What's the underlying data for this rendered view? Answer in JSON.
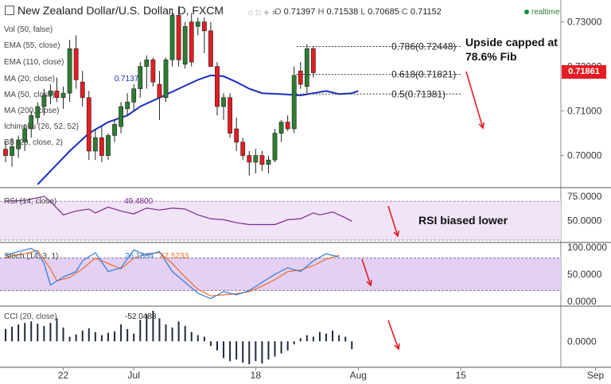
{
  "header": {
    "title": "New Zealand Dollar/U.S. Dollar, D, FXCM",
    "ohlc": {
      "O": "0.71397",
      "H": "0.71538",
      "L": "0.70685",
      "C": "0.71152"
    },
    "realtime_label": "realtime"
  },
  "overlay_labels": {
    "vol": "Vol (50, false)",
    "ema55": "EMA (55, close)",
    "ema110": "EMA (110, close)",
    "ma20": "MA (20, close)",
    "ma20_value": "0.7137",
    "ma50": "MA (50, close)",
    "ma200": "MA (200, close)",
    "ichimoku": "Ichimoku (26, 52, 52)",
    "bb": "BB (20, close, 2)"
  },
  "price_tag": "0.71861",
  "annotations": {
    "upside": "Upside capped at 78.6% Fib",
    "rsi": "RSI biased lower"
  },
  "colors": {
    "bull": "#2e7d32",
    "bear": "#e51c23",
    "ma": "#1a2fbf",
    "rsi_line": "#7b2a8f",
    "rsi_band": "#f1e4f7",
    "stoch_k": "#2f7bd8",
    "stoch_d": "#ef6c2a",
    "stoch_band": "#e3d0f2",
    "cci_bar": "#1f2a3d",
    "arrow": "#e51c23"
  },
  "chart_data": [
    {
      "type": "candlestick",
      "title": "New Zealand Dollar/U.S. Dollar, D, FXCM",
      "y_ticks": [
        "0.73000",
        "0.72000",
        "0.71000",
        "0.70000"
      ],
      "ylim": [
        0.6935,
        0.7335
      ],
      "x_ticks": [
        {
          "label": "22",
          "index": 9
        },
        {
          "label": "Jul",
          "index": 20
        },
        {
          "label": "18",
          "index": 39
        },
        {
          "label": "Aug",
          "index": 55
        },
        {
          "label": "15",
          "index": 71
        },
        {
          "label": "Sep",
          "index": 92
        }
      ],
      "candles": [
        {
          "o": 0.7014,
          "h": 0.703,
          "l": 0.6985,
          "c": 0.7
        },
        {
          "o": 0.7,
          "h": 0.704,
          "l": 0.6975,
          "c": 0.702
        },
        {
          "o": 0.7015,
          "h": 0.7045,
          "l": 0.6995,
          "c": 0.7035
        },
        {
          "o": 0.703,
          "h": 0.707,
          "l": 0.701,
          "c": 0.706
        },
        {
          "o": 0.706,
          "h": 0.71,
          "l": 0.704,
          "c": 0.709
        },
        {
          "o": 0.7085,
          "h": 0.712,
          "l": 0.707,
          "c": 0.711
        },
        {
          "o": 0.711,
          "h": 0.715,
          "l": 0.709,
          "c": 0.7135
        },
        {
          "o": 0.7135,
          "h": 0.716,
          "l": 0.7115,
          "c": 0.7145
        },
        {
          "o": 0.7145,
          "h": 0.7175,
          "l": 0.712,
          "c": 0.713
        },
        {
          "o": 0.713,
          "h": 0.7155,
          "l": 0.7105,
          "c": 0.714
        },
        {
          "o": 0.714,
          "h": 0.726,
          "l": 0.712,
          "c": 0.724
        },
        {
          "o": 0.724,
          "h": 0.727,
          "l": 0.715,
          "c": 0.717
        },
        {
          "o": 0.7165,
          "h": 0.719,
          "l": 0.711,
          "c": 0.713
        },
        {
          "o": 0.713,
          "h": 0.7145,
          "l": 0.699,
          "c": 0.701
        },
        {
          "o": 0.701,
          "h": 0.706,
          "l": 0.699,
          "c": 0.704
        },
        {
          "o": 0.704,
          "h": 0.7065,
          "l": 0.6985,
          "c": 0.7
        },
        {
          "o": 0.7,
          "h": 0.705,
          "l": 0.699,
          "c": 0.7045
        },
        {
          "o": 0.7045,
          "h": 0.708,
          "l": 0.703,
          "c": 0.707
        },
        {
          "o": 0.7065,
          "h": 0.712,
          "l": 0.705,
          "c": 0.711
        },
        {
          "o": 0.7105,
          "h": 0.714,
          "l": 0.709,
          "c": 0.712
        },
        {
          "o": 0.712,
          "h": 0.716,
          "l": 0.71,
          "c": 0.715
        },
        {
          "o": 0.715,
          "h": 0.721,
          "l": 0.713,
          "c": 0.72
        },
        {
          "o": 0.72,
          "h": 0.7225,
          "l": 0.715,
          "c": 0.7215
        },
        {
          "o": 0.7215,
          "h": 0.722,
          "l": 0.7155,
          "c": 0.7165
        },
        {
          "o": 0.716,
          "h": 0.719,
          "l": 0.708,
          "c": 0.713
        },
        {
          "o": 0.713,
          "h": 0.722,
          "l": 0.712,
          "c": 0.7215
        },
        {
          "o": 0.7215,
          "h": 0.733,
          "l": 0.72,
          "c": 0.7315
        },
        {
          "o": 0.7315,
          "h": 0.7335,
          "l": 0.72,
          "c": 0.7215
        },
        {
          "o": 0.7205,
          "h": 0.73,
          "l": 0.7195,
          "c": 0.729
        },
        {
          "o": 0.73,
          "h": 0.732,
          "l": 0.72,
          "c": 0.721
        },
        {
          "o": 0.729,
          "h": 0.731,
          "l": 0.727,
          "c": 0.73
        },
        {
          "o": 0.73,
          "h": 0.731,
          "l": 0.723,
          "c": 0.728
        },
        {
          "o": 0.728,
          "h": 0.73,
          "l": 0.72,
          "c": 0.72
        },
        {
          "o": 0.72,
          "h": 0.721,
          "l": 0.709,
          "c": 0.711
        },
        {
          "o": 0.711,
          "h": 0.714,
          "l": 0.708,
          "c": 0.713
        },
        {
          "o": 0.713,
          "h": 0.714,
          "l": 0.704,
          "c": 0.705
        },
        {
          "o": 0.706,
          "h": 0.7085,
          "l": 0.701,
          "c": 0.703
        },
        {
          "o": 0.703,
          "h": 0.704,
          "l": 0.699,
          "c": 0.7
        },
        {
          "o": 0.7,
          "h": 0.701,
          "l": 0.6955,
          "c": 0.6985
        },
        {
          "o": 0.6985,
          "h": 0.7015,
          "l": 0.696,
          "c": 0.7
        },
        {
          "o": 0.7,
          "h": 0.701,
          "l": 0.6965,
          "c": 0.698
        },
        {
          "o": 0.698,
          "h": 0.7,
          "l": 0.696,
          "c": 0.699
        },
        {
          "o": 0.699,
          "h": 0.706,
          "l": 0.6985,
          "c": 0.705
        },
        {
          "o": 0.705,
          "h": 0.708,
          "l": 0.703,
          "c": 0.7075
        },
        {
          "o": 0.7075,
          "h": 0.709,
          "l": 0.7055,
          "c": 0.706
        },
        {
          "o": 0.706,
          "h": 0.72,
          "l": 0.705,
          "c": 0.718
        },
        {
          "o": 0.719,
          "h": 0.721,
          "l": 0.715,
          "c": 0.716
        },
        {
          "o": 0.7155,
          "h": 0.725,
          "l": 0.714,
          "c": 0.724
        },
        {
          "o": 0.724,
          "h": 0.7245,
          "l": 0.7175,
          "c": 0.7186
        }
      ],
      "fib_levels": [
        {
          "label": "0.786(0.72448)",
          "value": 0.72448
        },
        {
          "label": "0.618(0.71821)",
          "value": 0.71821
        },
        {
          "label": "0.5(0.71381)",
          "value": 0.71381
        }
      ],
      "ma20": [
        {
          "i": 5,
          "v": 0.6935
        },
        {
          "i": 8,
          "v": 0.698
        },
        {
          "i": 10,
          "v": 0.701
        },
        {
          "i": 13,
          "v": 0.705
        },
        {
          "i": 16,
          "v": 0.7075
        },
        {
          "i": 19,
          "v": 0.709
        },
        {
          "i": 21,
          "v": 0.711
        },
        {
          "i": 24,
          "v": 0.713
        },
        {
          "i": 27,
          "v": 0.715
        },
        {
          "i": 30,
          "v": 0.717
        },
        {
          "i": 32,
          "v": 0.718
        },
        {
          "i": 34,
          "v": 0.7178
        },
        {
          "i": 36,
          "v": 0.7165
        },
        {
          "i": 38,
          "v": 0.715
        },
        {
          "i": 40,
          "v": 0.714
        },
        {
          "i": 43,
          "v": 0.7138
        },
        {
          "i": 46,
          "v": 0.7135
        },
        {
          "i": 48,
          "v": 0.714
        },
        {
          "i": 50,
          "v": 0.7145
        },
        {
          "i": 52,
          "v": 0.7138
        },
        {
          "i": 54,
          "v": 0.714
        },
        {
          "i": 55,
          "v": 0.7145
        }
      ]
    },
    {
      "type": "line",
      "title": "RSI (14, close)",
      "current_value": "49.4800",
      "y_ticks": [
        "75.0000",
        "50.0000"
      ],
      "ylim": [
        30,
        80
      ],
      "band": [
        30,
        70
      ],
      "series": [
        {
          "values": [
            {
              "i": 0,
              "v": 70
            },
            {
              "i": 3,
              "v": 71
            },
            {
              "i": 6,
              "v": 75
            },
            {
              "i": 7,
              "v": 70
            },
            {
              "i": 9,
              "v": 56
            },
            {
              "i": 11,
              "v": 60
            },
            {
              "i": 13,
              "v": 62
            },
            {
              "i": 14,
              "v": 58
            },
            {
              "i": 16,
              "v": 64
            },
            {
              "i": 18,
              "v": 60
            },
            {
              "i": 20,
              "v": 57
            },
            {
              "i": 22,
              "v": 63
            },
            {
              "i": 24,
              "v": 61
            },
            {
              "i": 26,
              "v": 63
            },
            {
              "i": 28,
              "v": 62
            },
            {
              "i": 30,
              "v": 56
            },
            {
              "i": 32,
              "v": 52
            },
            {
              "i": 34,
              "v": 51
            },
            {
              "i": 36,
              "v": 48
            },
            {
              "i": 38,
              "v": 46
            },
            {
              "i": 40,
              "v": 46
            },
            {
              "i": 42,
              "v": 46
            },
            {
              "i": 44,
              "v": 51
            },
            {
              "i": 46,
              "v": 52
            },
            {
              "i": 48,
              "v": 58
            },
            {
              "i": 49,
              "v": 56
            },
            {
              "i": 51,
              "v": 59
            },
            {
              "i": 53,
              "v": 53
            },
            {
              "i": 54,
              "v": 49.5
            }
          ]
        }
      ]
    },
    {
      "type": "line",
      "title": "Stoch (14, 3, 1)",
      "current_value_k": "26.1804",
      "current_value_d": "47.5233",
      "y_ticks": [
        "100.0000",
        "50.0000",
        "0.0000"
      ],
      "ylim": [
        0,
        100
      ],
      "band": [
        20,
        80
      ],
      "series": [
        {
          "values": [
            {
              "i": 0,
              "v": 85
            },
            {
              "i": 2,
              "v": 92
            },
            {
              "i": 4,
              "v": 98
            },
            {
              "i": 5,
              "v": 90
            },
            {
              "i": 6,
              "v": 70
            },
            {
              "i": 7,
              "v": 30
            },
            {
              "i": 9,
              "v": 45
            },
            {
              "i": 11,
              "v": 55
            },
            {
              "i": 12,
              "v": 75
            },
            {
              "i": 14,
              "v": 90
            },
            {
              "i": 16,
              "v": 55
            },
            {
              "i": 18,
              "v": 62
            },
            {
              "i": 20,
              "v": 95
            },
            {
              "i": 22,
              "v": 85
            },
            {
              "i": 24,
              "v": 92
            },
            {
              "i": 26,
              "v": 55
            },
            {
              "i": 28,
              "v": 35
            },
            {
              "i": 30,
              "v": 15
            },
            {
              "i": 32,
              "v": 5
            },
            {
              "i": 34,
              "v": 18
            },
            {
              "i": 36,
              "v": 12
            },
            {
              "i": 38,
              "v": 20
            },
            {
              "i": 40,
              "v": 35
            },
            {
              "i": 42,
              "v": 50
            },
            {
              "i": 44,
              "v": 62
            },
            {
              "i": 46,
              "v": 55
            },
            {
              "i": 48,
              "v": 75
            },
            {
              "i": 50,
              "v": 88
            },
            {
              "i": 52,
              "v": 82
            }
          ]
        },
        {
          "values": [
            {
              "i": 0,
              "v": 82
            },
            {
              "i": 3,
              "v": 88
            },
            {
              "i": 5,
              "v": 94
            },
            {
              "i": 7,
              "v": 60
            },
            {
              "i": 8,
              "v": 38
            },
            {
              "i": 10,
              "v": 44
            },
            {
              "i": 12,
              "v": 60
            },
            {
              "i": 14,
              "v": 80
            },
            {
              "i": 16,
              "v": 70
            },
            {
              "i": 18,
              "v": 60
            },
            {
              "i": 20,
              "v": 80
            },
            {
              "i": 22,
              "v": 88
            },
            {
              "i": 24,
              "v": 90
            },
            {
              "i": 26,
              "v": 70
            },
            {
              "i": 28,
              "v": 45
            },
            {
              "i": 30,
              "v": 22
            },
            {
              "i": 32,
              "v": 10
            },
            {
              "i": 34,
              "v": 12
            },
            {
              "i": 36,
              "v": 14
            },
            {
              "i": 38,
              "v": 18
            },
            {
              "i": 40,
              "v": 28
            },
            {
              "i": 42,
              "v": 40
            },
            {
              "i": 44,
              "v": 55
            },
            {
              "i": 46,
              "v": 58
            },
            {
              "i": 48,
              "v": 66
            },
            {
              "i": 50,
              "v": 78
            },
            {
              "i": 52,
              "v": 85
            }
          ]
        }
      ]
    },
    {
      "type": "bar",
      "title": "CCI (20, close)",
      "current_value": "-52.0488",
      "y_ticks": [
        "0.0000"
      ],
      "ylim": [
        -160,
        220
      ],
      "values": [
        {
          "i": 0,
          "v": 80
        },
        {
          "i": 1,
          "v": 95
        },
        {
          "i": 2,
          "v": 110
        },
        {
          "i": 3,
          "v": 120
        },
        {
          "i": 4,
          "v": 130
        },
        {
          "i": 5,
          "v": 115
        },
        {
          "i": 6,
          "v": 100
        },
        {
          "i": 7,
          "v": 120
        },
        {
          "i": 8,
          "v": 150
        },
        {
          "i": 9,
          "v": 90
        },
        {
          "i": 10,
          "v": 30
        },
        {
          "i": 11,
          "v": 45
        },
        {
          "i": 12,
          "v": 70
        },
        {
          "i": 13,
          "v": 85
        },
        {
          "i": 14,
          "v": 60
        },
        {
          "i": 15,
          "v": 40
        },
        {
          "i": 16,
          "v": 55
        },
        {
          "i": 17,
          "v": 65
        },
        {
          "i": 18,
          "v": 110
        },
        {
          "i": 19,
          "v": 80
        },
        {
          "i": 20,
          "v": 50
        },
        {
          "i": 21,
          "v": 140
        },
        {
          "i": 22,
          "v": 175
        },
        {
          "i": 23,
          "v": 200
        },
        {
          "i": 24,
          "v": 150
        },
        {
          "i": 25,
          "v": 110
        },
        {
          "i": 26,
          "v": 90
        },
        {
          "i": 27,
          "v": 130
        },
        {
          "i": 28,
          "v": 100
        },
        {
          "i": 29,
          "v": 60
        },
        {
          "i": 30,
          "v": 40
        },
        {
          "i": 31,
          "v": 30
        },
        {
          "i": 32,
          "v": -30
        },
        {
          "i": 33,
          "v": -60
        },
        {
          "i": 34,
          "v": -110
        },
        {
          "i": 35,
          "v": -130
        },
        {
          "i": 36,
          "v": -120
        },
        {
          "i": 37,
          "v": -140
        },
        {
          "i": 38,
          "v": -150
        },
        {
          "i": 39,
          "v": -130
        },
        {
          "i": 40,
          "v": -145
        },
        {
          "i": 41,
          "v": -120
        },
        {
          "i": 42,
          "v": -100
        },
        {
          "i": 43,
          "v": -80
        },
        {
          "i": 44,
          "v": -60
        },
        {
          "i": 45,
          "v": -20
        },
        {
          "i": 46,
          "v": 20
        },
        {
          "i": 47,
          "v": 40
        },
        {
          "i": 48,
          "v": 30
        },
        {
          "i": 49,
          "v": 60
        },
        {
          "i": 50,
          "v": 50
        },
        {
          "i": 51,
          "v": 70
        },
        {
          "i": 52,
          "v": 40
        },
        {
          "i": 53,
          "v": 30
        },
        {
          "i": 54,
          "v": -52
        }
      ]
    }
  ]
}
